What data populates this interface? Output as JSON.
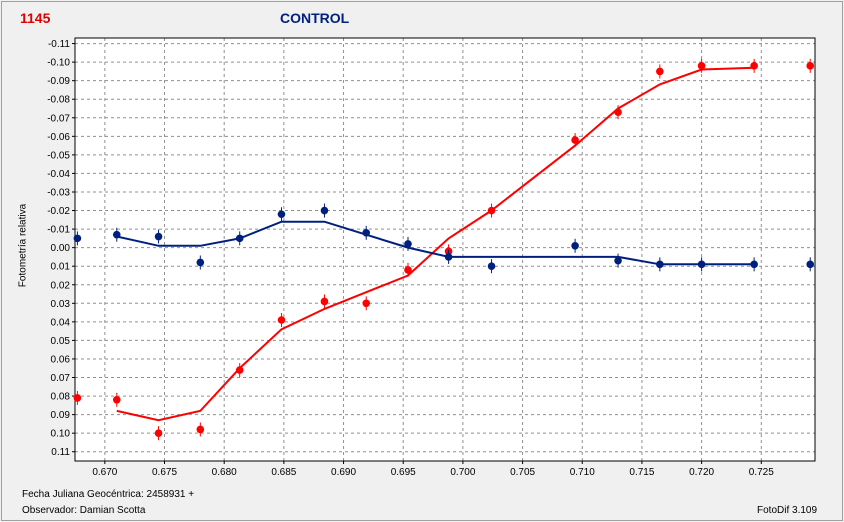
{
  "header": {
    "star_id": "1145",
    "title": "CONTROL"
  },
  "footer": {
    "jd_text": "Fecha Juliana Geocéntrica: 2458931 +",
    "observer_text": "Observador: Damian Scotta",
    "software_text": "FotoDif 3.109"
  },
  "chart_data": {
    "type": "scatter",
    "title": "CONTROL",
    "xlabel": "",
    "ylabel": "Fotometría relativa",
    "xlim": [
      0.6675,
      0.7295
    ],
    "ylim": [
      -0.113,
      0.115
    ],
    "y_inverted": true,
    "grid": true,
    "x_ticks": [
      "0.670",
      "0.675",
      "0.680",
      "0.685",
      "0.690",
      "0.695",
      "0.700",
      "0.705",
      "0.710",
      "0.715",
      "0.720",
      "0.725"
    ],
    "y_ticks": [
      "-0.11",
      "-0.10",
      "-0.09",
      "-0.08",
      "-0.07",
      "-0.06",
      "-0.05",
      "-0.04",
      "-0.03",
      "-0.02",
      "-0.01",
      "0.00",
      "0.01",
      "0.02",
      "0.03",
      "0.04",
      "0.05",
      "0.06",
      "0.07",
      "0.08",
      "0.09",
      "0.10",
      "0.11"
    ],
    "colors": {
      "red": "#ff0000",
      "blue": "#00207f"
    },
    "series": [
      {
        "color": "red",
        "points": [
          {
            "x": 0.6677,
            "y": 0.081
          },
          {
            "x": 0.671,
            "y": 0.082
          },
          {
            "x": 0.6745,
            "y": 0.1
          },
          {
            "x": 0.678,
            "y": 0.098
          },
          {
            "x": 0.6813,
            "y": 0.066
          },
          {
            "x": 0.6848,
            "y": 0.039
          },
          {
            "x": 0.6884,
            "y": 0.029
          },
          {
            "x": 0.6919,
            "y": 0.03
          },
          {
            "x": 0.6954,
            "y": 0.012
          },
          {
            "x": 0.6988,
            "y": 0.002
          },
          {
            "x": 0.7024,
            "y": -0.02
          },
          {
            "x": 0.7094,
            "y": -0.058
          },
          {
            "x": 0.713,
            "y": -0.073
          },
          {
            "x": 0.7165,
            "y": -0.095
          },
          {
            "x": 0.72,
            "y": -0.098
          },
          {
            "x": 0.7244,
            "y": -0.098
          },
          {
            "x": 0.7291,
            "y": -0.098
          }
        ],
        "fit": [
          {
            "x": 0.671,
            "y": 0.088
          },
          {
            "x": 0.6745,
            "y": 0.093
          },
          {
            "x": 0.678,
            "y": 0.088
          },
          {
            "x": 0.6813,
            "y": 0.065
          },
          {
            "x": 0.6848,
            "y": 0.044
          },
          {
            "x": 0.6884,
            "y": 0.033
          },
          {
            "x": 0.6919,
            "y": 0.024
          },
          {
            "x": 0.6954,
            "y": 0.015
          },
          {
            "x": 0.6988,
            "y": -0.005
          },
          {
            "x": 0.7024,
            "y": -0.02
          },
          {
            "x": 0.7094,
            "y": -0.055
          },
          {
            "x": 0.713,
            "y": -0.075
          },
          {
            "x": 0.7165,
            "y": -0.088
          },
          {
            "x": 0.72,
            "y": -0.096
          },
          {
            "x": 0.7244,
            "y": -0.097
          }
        ]
      },
      {
        "color": "blue",
        "points": [
          {
            "x": 0.6677,
            "y": -0.005
          },
          {
            "x": 0.671,
            "y": -0.007
          },
          {
            "x": 0.6745,
            "y": -0.006
          },
          {
            "x": 0.678,
            "y": 0.008
          },
          {
            "x": 0.6813,
            "y": -0.005
          },
          {
            "x": 0.6848,
            "y": -0.018
          },
          {
            "x": 0.6884,
            "y": -0.02
          },
          {
            "x": 0.6919,
            "y": -0.008
          },
          {
            "x": 0.6954,
            "y": -0.002
          },
          {
            "x": 0.6988,
            "y": 0.005
          },
          {
            "x": 0.7024,
            "y": 0.01
          },
          {
            "x": 0.7094,
            "y": -0.001
          },
          {
            "x": 0.713,
            "y": 0.007
          },
          {
            "x": 0.7165,
            "y": 0.009
          },
          {
            "x": 0.72,
            "y": 0.009
          },
          {
            "x": 0.7244,
            "y": 0.009
          },
          {
            "x": 0.7291,
            "y": 0.009
          }
        ],
        "fit": [
          {
            "x": 0.671,
            "y": -0.006
          },
          {
            "x": 0.6745,
            "y": -0.001
          },
          {
            "x": 0.678,
            "y": -0.001
          },
          {
            "x": 0.6813,
            "y": -0.005
          },
          {
            "x": 0.6848,
            "y": -0.014
          },
          {
            "x": 0.6884,
            "y": -0.014
          },
          {
            "x": 0.6919,
            "y": -0.007
          },
          {
            "x": 0.6954,
            "y": 0.0
          },
          {
            "x": 0.6988,
            "y": 0.005
          },
          {
            "x": 0.7024,
            "y": 0.005
          },
          {
            "x": 0.7094,
            "y": 0.005
          },
          {
            "x": 0.713,
            "y": 0.005
          },
          {
            "x": 0.7165,
            "y": 0.009
          },
          {
            "x": 0.72,
            "y": 0.009
          },
          {
            "x": 0.7244,
            "y": 0.009
          }
        ]
      }
    ]
  }
}
